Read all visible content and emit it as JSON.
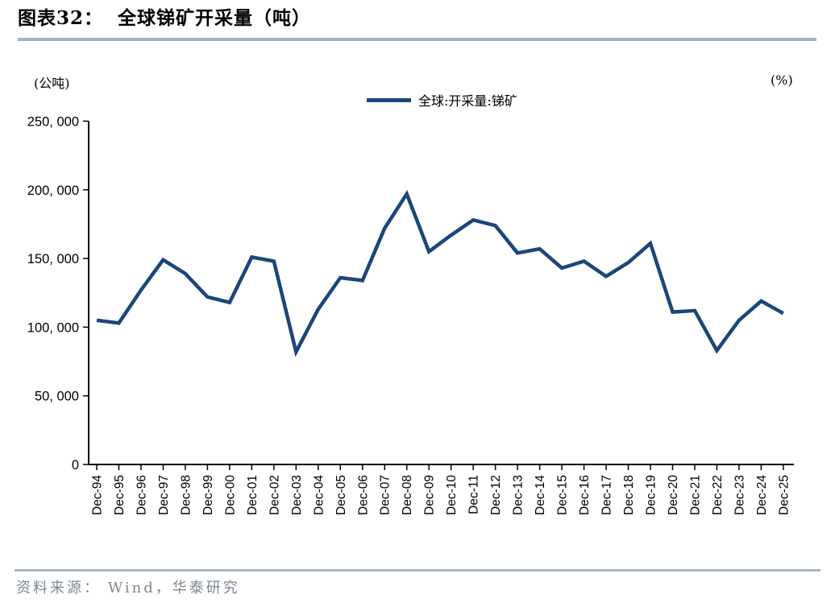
{
  "header": {
    "figure_label": "图表32：",
    "title": "全球锑矿开采量（吨）"
  },
  "footer": {
    "source": "资料来源： Wind，华泰研究"
  },
  "colors": {
    "series_line": "#1b4679",
    "title_rule": "#9fb3c8",
    "footer_rule": "#a3b5c8",
    "footer_text": "#7d8790",
    "axis": "#000000"
  },
  "chart_data": {
    "type": "line",
    "title": "全球锑矿开采量（吨）",
    "left_unit": "(公吨)",
    "right_unit": "(%)",
    "legend_label": "全球:开采量:锑矿",
    "legend_position": "top-center",
    "grid": false,
    "ylim": [
      0,
      250000
    ],
    "y_ticks": [
      {
        "value": 0,
        "label": "0"
      },
      {
        "value": 50000,
        "label": "50, 000"
      },
      {
        "value": 100000,
        "label": "100, 000"
      },
      {
        "value": 150000,
        "label": "150, 000"
      },
      {
        "value": 200000,
        "label": "200, 000"
      },
      {
        "value": 250000,
        "label": "250, 000"
      }
    ],
    "categories": [
      "Dec-94",
      "Dec-95",
      "Dec-96",
      "Dec-97",
      "Dec-98",
      "Dec-99",
      "Dec-00",
      "Dec-01",
      "Dec-02",
      "Dec-03",
      "Dec-04",
      "Dec-05",
      "Dec-06",
      "Dec-07",
      "Dec-08",
      "Dec-09",
      "Dec-10",
      "Dec-11",
      "Dec-12",
      "Dec-13",
      "Dec-14",
      "Dec-15",
      "Dec-16",
      "Dec-17",
      "Dec-18",
      "Dec-19",
      "Dec-20",
      "Dec-21",
      "Dec-22",
      "Dec-23",
      "Dec-24",
      "Dec-25"
    ],
    "series": [
      {
        "name": "全球:开采量:锑矿",
        "color": "#1b4679",
        "values": [
          105000,
          103000,
          127000,
          149000,
          139000,
          122000,
          118000,
          151000,
          148000,
          82000,
          113000,
          136000,
          134000,
          172000,
          197000,
          155000,
          167000,
          178000,
          174000,
          154000,
          157000,
          143000,
          148000,
          137000,
          147000,
          161000,
          111000,
          112000,
          83000,
          105000,
          119000,
          110000
        ]
      }
    ]
  }
}
